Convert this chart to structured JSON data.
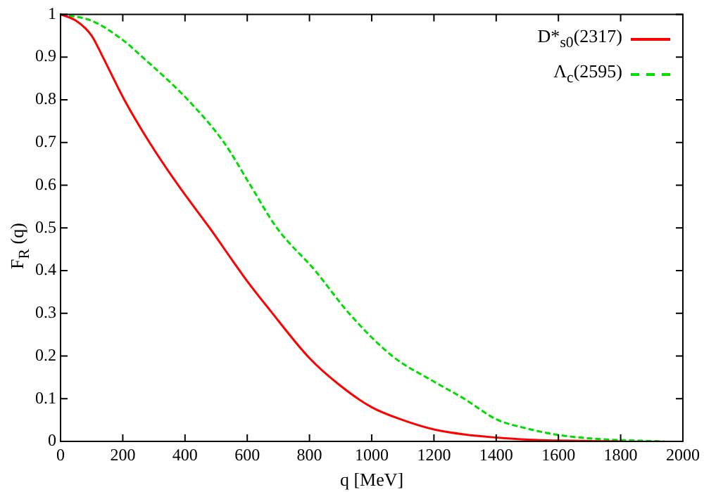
{
  "chart_data": {
    "type": "line",
    "xlabel": "q [MeV]",
    "ylabel": "F$_{R}$ (q)",
    "xlim": [
      0,
      2000
    ],
    "xticks": [
      0,
      200,
      400,
      600,
      800,
      1000,
      1200,
      1400,
      1600,
      1800,
      2000
    ],
    "ylim": [
      0,
      1
    ],
    "yticks": [
      0,
      0.1,
      0.2,
      0.3,
      0.4,
      0.5,
      0.6,
      0.7,
      0.8,
      0.9,
      1
    ],
    "grid": false,
    "legend": "top right",
    "marker": "none",
    "series": [
      {
        "name": "D*$_{s0}$(2317)",
        "color": "#ff0000",
        "line_style": "solid",
        "x": [
          0,
          50,
          100,
          136,
          205,
          286,
          378,
          479,
          556,
          600,
          670,
          800,
          900,
          1000,
          1100,
          1200,
          1300,
          1400,
          1500,
          1600,
          1700,
          1800
        ],
        "values": [
          1,
          0.985,
          0.95,
          0.9,
          0.8,
          0.7,
          0.6,
          0.5,
          0.42,
          0.375,
          0.31,
          0.195,
          0.13,
          0.08,
          0.05,
          0.028,
          0.016,
          0.009,
          0.004,
          0.002,
          0.001,
          0
        ]
      },
      {
        "name": "Λ$_{c}$(2595)",
        "color": "#00dd00",
        "line_style": "dashed",
        "x": [
          0,
          100,
          200,
          263,
          409,
          525,
          610,
          695,
          818,
          927,
          1066,
          1200,
          1297,
          1400,
          1500,
          1600,
          1700,
          1800,
          1900,
          1940
        ],
        "values": [
          1,
          0.985,
          0.94,
          0.9,
          0.8,
          0.7,
          0.6,
          0.5,
          0.4,
          0.3,
          0.2,
          0.14,
          0.1,
          0.052,
          0.03,
          0.015,
          0.007,
          0.003,
          0.001,
          0
        ]
      }
    ]
  }
}
